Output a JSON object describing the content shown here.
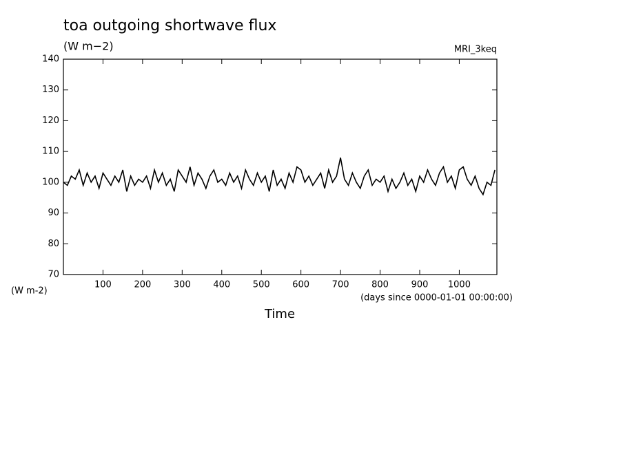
{
  "chart_data": {
    "type": "line",
    "title": "toa outgoing shortwave flux",
    "units": "(W m−2)",
    "dataset": "MRI_3keq",
    "y_label": "(W m-2)",
    "x_label": "Time",
    "x_units": "(days since 0000-01-01 00:00:00)",
    "x": [
      0,
      10,
      20,
      30,
      40,
      50,
      60,
      70,
      80,
      90,
      100,
      110,
      120,
      130,
      140,
      150,
      160,
      170,
      180,
      190,
      200,
      210,
      220,
      230,
      240,
      250,
      260,
      270,
      280,
      290,
      300,
      310,
      320,
      330,
      340,
      350,
      360,
      370,
      380,
      390,
      400,
      410,
      420,
      430,
      440,
      450,
      460,
      470,
      480,
      490,
      500,
      510,
      520,
      530,
      540,
      550,
      560,
      570,
      580,
      590,
      600,
      610,
      620,
      630,
      640,
      650,
      660,
      670,
      680,
      690,
      700,
      710,
      720,
      730,
      740,
      750,
      760,
      770,
      780,
      790,
      800,
      810,
      820,
      830,
      840,
      850,
      860,
      870,
      880,
      890,
      900,
      910,
      920,
      930,
      940,
      950,
      960,
      970,
      980,
      990,
      1000,
      1010,
      1020,
      1030,
      1040,
      1050,
      1060,
      1070,
      1080,
      1090
    ],
    "series": [
      {
        "name": "toa outgoing shortwave flux",
        "color": "#000000",
        "values": [
          100,
          99,
          102,
          101,
          104,
          99,
          103,
          100,
          102,
          98,
          103,
          101,
          99,
          102,
          100,
          104,
          97,
          102,
          99,
          101,
          100,
          102,
          98,
          104,
          100,
          103,
          99,
          101,
          97,
          104,
          102,
          100,
          105,
          99,
          103,
          101,
          98,
          102,
          104,
          100,
          101,
          99,
          103,
          100,
          102,
          98,
          104,
          101,
          99,
          103,
          100,
          102,
          97,
          104,
          99,
          101,
          98,
          103,
          100,
          105,
          104,
          100,
          102,
          99,
          101,
          103,
          98,
          104,
          100,
          102,
          108,
          101,
          99,
          103,
          100,
          98,
          102,
          104,
          99,
          101,
          100,
          102,
          97,
          101,
          98,
          100,
          103,
          99,
          101,
          97,
          102,
          100,
          104,
          101,
          99,
          103,
          105,
          100,
          102,
          98,
          104,
          105,
          101,
          99,
          102,
          98,
          96,
          100,
          99,
          104
        ]
      }
    ],
    "xlim": [
      0,
      1095
    ],
    "xticks": [
      100,
      200,
      300,
      400,
      500,
      600,
      700,
      800,
      900,
      1000
    ],
    "ylim": [
      70,
      140
    ],
    "yticks": [
      70,
      80,
      90,
      100,
      110,
      120,
      130,
      140
    ]
  }
}
